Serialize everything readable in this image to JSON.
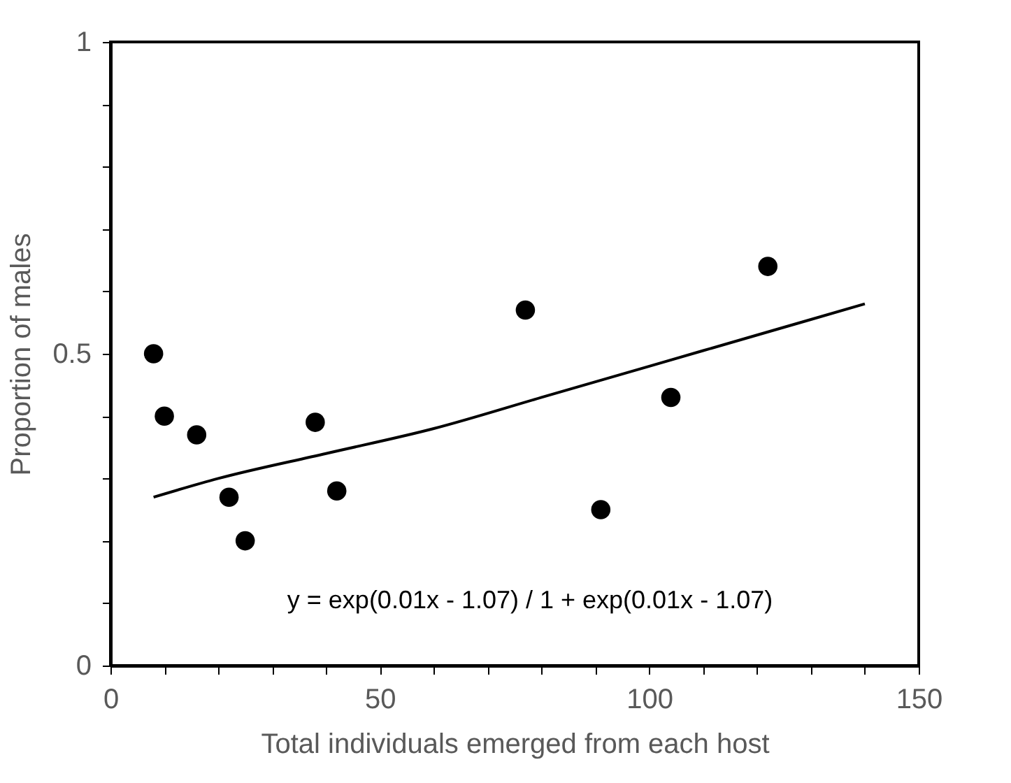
{
  "chart_data": {
    "type": "scatter",
    "xlabel": "Total individuals emerged from each host",
    "ylabel": "Proportion of males",
    "xlim": [
      0,
      150
    ],
    "ylim": [
      0,
      1
    ],
    "xticks": [
      0,
      {
        "value": 10,
        "label": null
      },
      {
        "value": 20,
        "label": null
      },
      {
        "value": 30,
        "label": null
      },
      {
        "value": 40,
        "label": null
      },
      50,
      {
        "value": 60,
        "label": null
      },
      {
        "value": 70,
        "label": null
      },
      {
        "value": 80,
        "label": null
      },
      {
        "value": 90,
        "label": null
      },
      100,
      {
        "value": 110,
        "label": null
      },
      {
        "value": 120,
        "label": null
      },
      {
        "value": 130,
        "label": null
      },
      {
        "value": 140,
        "label": null
      },
      150
    ],
    "yticks": [
      0,
      {
        "value": 0.1,
        "label": null
      },
      {
        "value": 0.2,
        "label": null
      },
      {
        "value": 0.3,
        "label": null
      },
      {
        "value": 0.4,
        "label": null
      },
      0.5,
      {
        "value": 0.6,
        "label": null
      },
      {
        "value": 0.7,
        "label": null
      },
      {
        "value": 0.8,
        "label": null
      },
      {
        "value": 0.9,
        "label": null
      },
      1
    ],
    "grid": false,
    "marker": "circle",
    "series": [
      {
        "type": "scatter",
        "color": "#000000",
        "x": [
          8,
          10,
          16,
          22,
          25,
          38,
          42,
          77,
          91,
          104,
          122
        ],
        "values": [
          0.5,
          0.4,
          0.37,
          0.27,
          0.2,
          0.39,
          0.28,
          0.57,
          0.25,
          0.43,
          0.64
        ]
      },
      {
        "type": "line",
        "color": "#000000",
        "line_style": "solid",
        "marker": "none",
        "x": [
          8,
          20,
          40,
          60,
          80,
          100,
          120,
          140
        ],
        "values": [
          0.27,
          0.3,
          0.34,
          0.38,
          0.43,
          0.48,
          0.53,
          0.58
        ]
      }
    ],
    "annotations": [
      "y =  exp(0.01x - 1.07) / 1 + exp(0.01x - 1.07)"
    ]
  }
}
